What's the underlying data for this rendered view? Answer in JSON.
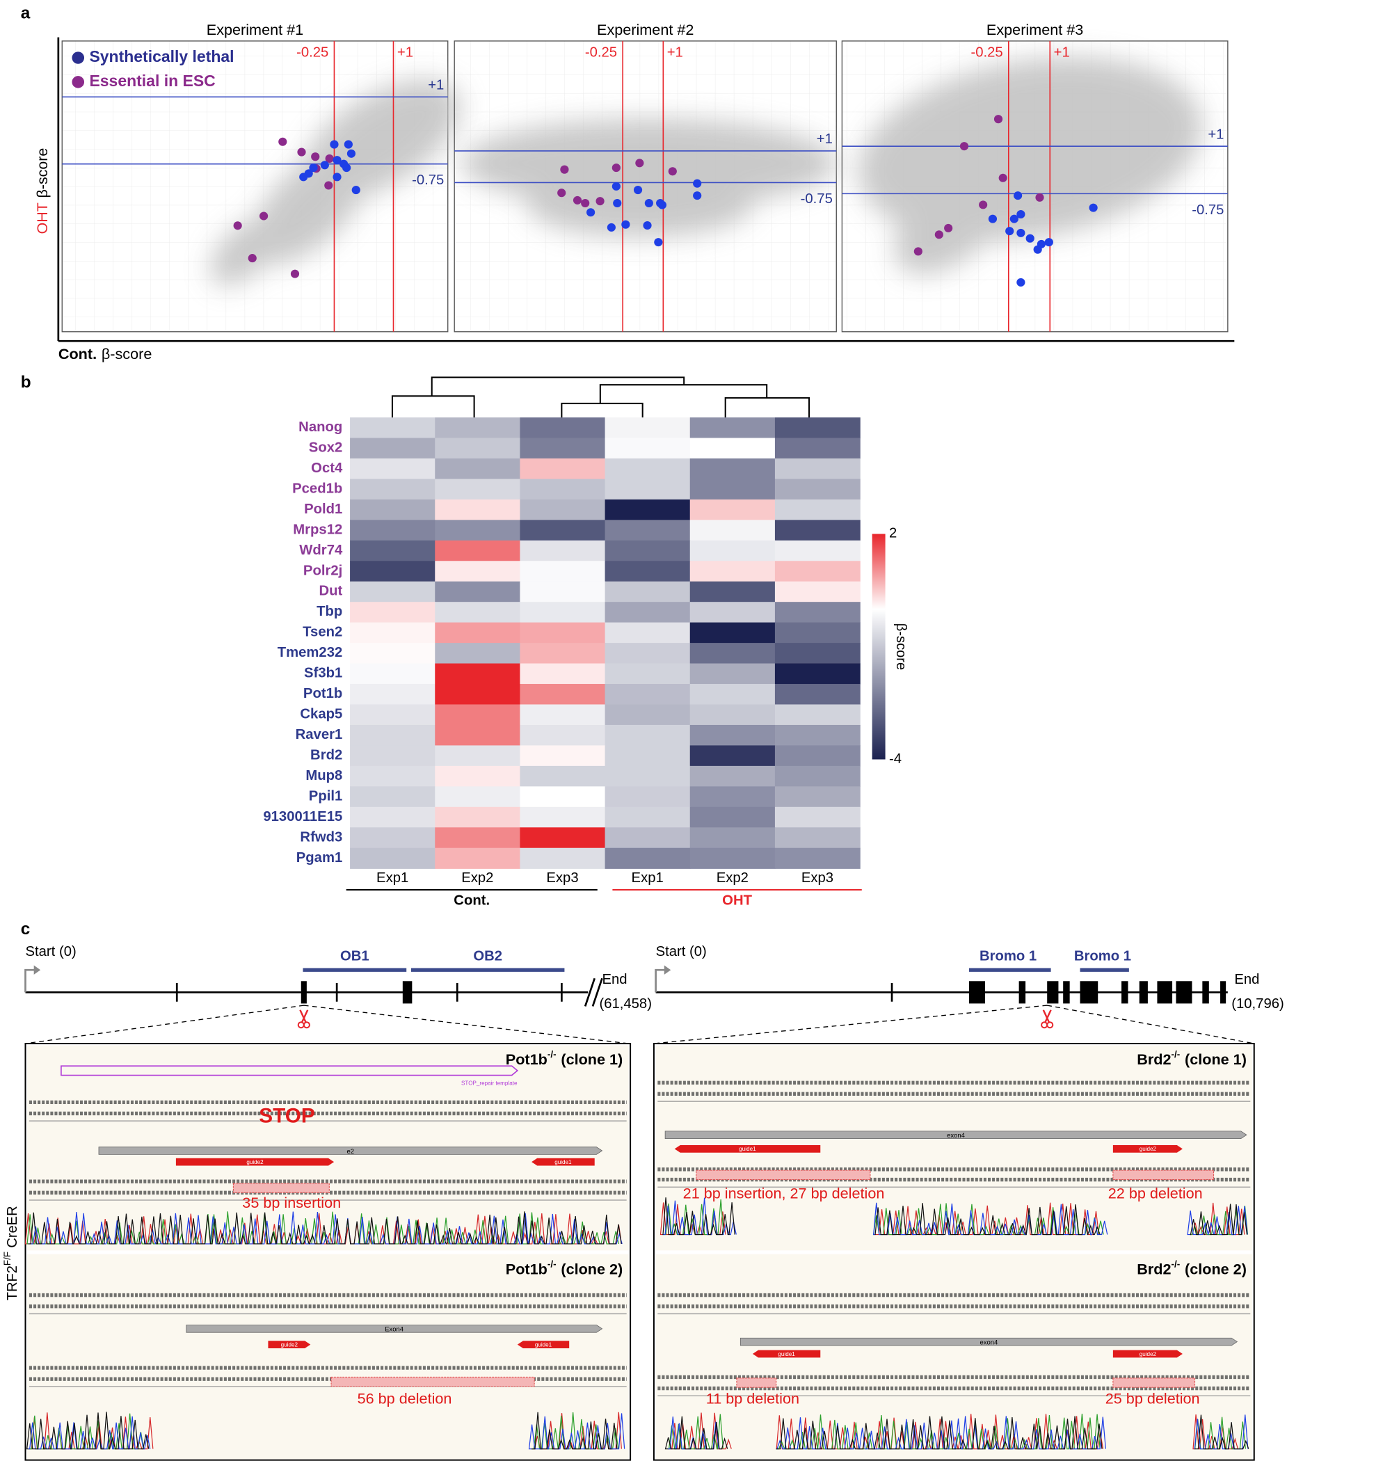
{
  "panel_a": {
    "label": "a",
    "y_label": [
      "OHT",
      "β-score"
    ],
    "x_label": [
      "Cont.",
      "β-score"
    ],
    "cloud_color": "#c4c4c4"
  },
  "chart_data": [
    {
      "type": "scatter",
      "title": "Experiment #1",
      "legend": "upper left",
      "xlim": [
        -6,
        2.15
      ],
      "ylim": [
        -5.13,
        2.46
      ],
      "vlines": [
        -0.25,
        {
          "value": 1,
          "label": "+1"
        }
      ],
      "hlines": [
        {
          "value": 1,
          "label": "+1"
        },
        -0.75
      ],
      "vline_color": "#e8262c",
      "hline_color": "#3d4fc4",
      "series": [
        {
          "name": "Synthetically lethal",
          "color": "#1f3fe6",
          "x": [
            -0.25,
            0.05,
            0.11,
            -0.19,
            -0.05,
            -0.45,
            -0.69,
            -0.79,
            -0.9,
            -0.19,
            0.01,
            0.21
          ],
          "values": [
            -0.24,
            -0.24,
            -0.48,
            -0.65,
            -0.75,
            -0.78,
            -0.85,
            -1.0,
            -1.09,
            -1.09,
            -0.85,
            -1.43
          ]
        },
        {
          "name": "Essential in ESC",
          "color": "#8b2a8b",
          "x": [
            -1.34,
            -0.94,
            -0.65,
            -0.35,
            -0.63,
            -0.37,
            -1.74,
            -2.29,
            -1.98,
            -1.08
          ],
          "values": [
            -0.17,
            -0.44,
            -0.56,
            -0.61,
            -0.87,
            -1.31,
            -2.11,
            -2.36,
            -3.21,
            -3.62
          ]
        }
      ]
    },
    {
      "type": "scatter",
      "title": "Experiment #2",
      "xlim": [
        -5.45,
        6.35
      ],
      "ylim": [
        -9,
        7.08
      ],
      "vlines": [
        -0.25,
        {
          "value": 1,
          "label": "+1"
        }
      ],
      "hlines": [
        {
          "value": 1,
          "label": "+1"
        },
        -0.75
      ],
      "vline_color": "#e8262c",
      "hline_color": "#3d4fc4",
      "series": [
        {
          "name": "Synthetically lethal",
          "color": "#1f3fe6",
          "x": [
            -0.45,
            0.22,
            -0.42,
            -1.24,
            0.56,
            0.91,
            0.97,
            2.05,
            2.05,
            -0.16,
            -0.6,
            0.51,
            0.85
          ],
          "values": [
            -0.96,
            -1.16,
            -1.89,
            -2.4,
            -1.89,
            -1.89,
            -1.99,
            -0.8,
            -1.47,
            -3.07,
            -3.23,
            -3.12,
            -4.05
          ]
        },
        {
          "name": "Essential in ESC",
          "color": "#8b2a8b",
          "x": [
            -2.05,
            -0.45,
            0.27,
            1.29,
            -2.14,
            -1.65,
            -1.41,
            -0.95
          ],
          "values": [
            -0.03,
            0.07,
            0.33,
            -0.13,
            -1.32,
            -1.73,
            -1.89,
            -1.78
          ]
        }
      ]
    },
    {
      "type": "scatter",
      "title": "Experiment #3",
      "xlim": [
        -5.28,
        6.37
      ],
      "ylim": [
        -5.84,
        4.88
      ],
      "vlines": [
        -0.25,
        {
          "value": 1,
          "label": "+1"
        }
      ],
      "hlines": [
        {
          "value": 1,
          "label": "+1"
        },
        -0.75
      ],
      "vline_color": "#e8262c",
      "hline_color": "#3d4fc4",
      "series": [
        {
          "name": "Synthetically lethal",
          "color": "#1f3fe6",
          "x": [
            0.03,
            2.31,
            -0.73,
            -0.08,
            0.12,
            -0.22,
            0.12,
            0.4,
            0.74,
            0.97,
            0.63,
            0.12
          ],
          "values": [
            -0.82,
            -1.27,
            -1.68,
            -1.68,
            -1.51,
            -2.13,
            -2.2,
            -2.4,
            -2.61,
            -2.54,
            -2.81,
            -4.02
          ]
        },
        {
          "name": "Essential in ESC",
          "color": "#8b2a8b",
          "x": [
            -0.56,
            -1.59,
            -0.42,
            -1.02,
            0.69,
            -2.07,
            -2.35,
            -2.98
          ],
          "values": [
            2.0,
            1.0,
            -0.17,
            -1.16,
            -0.89,
            -2.02,
            -2.26,
            -2.88
          ]
        }
      ]
    },
    {
      "type": "heatmap",
      "label": "b",
      "rows": [
        "Nanog",
        "Sox2",
        "Oct4",
        "Pced1b",
        "Pold1",
        "Mrps12",
        "Wdr74",
        "Polr2j",
        "Dut",
        "Tbp",
        "Tsen2",
        "Tmem232",
        "Sf3b1",
        "Pot1b",
        "Ckap5",
        "Raver1",
        "Brd2",
        "Mup8",
        "Ppil1",
        "9130011E15",
        "Rfwd3",
        "Pgam1"
      ],
      "row_colors": [
        "#8b3a96",
        "#8b3a96",
        "#8b3a96",
        "#8b3a96",
        "#8b3a96",
        "#8b3a96",
        "#8b3a96",
        "#8b3a96",
        "#8b3a96",
        "#2e3a8c",
        "#2e3a8c",
        "#2e3a8c",
        "#2e3a8c",
        "#2e3a8c",
        "#2e3a8c",
        "#2e3a8c",
        "#2e3a8c",
        "#2e3a8c",
        "#2e3a8c",
        "#2e3a8c",
        "#2e3a8c",
        "#2e3a8c"
      ],
      "columns": [
        "Exp1",
        "Exp2",
        "Exp3",
        "Exp1",
        "Exp2",
        "Exp3"
      ],
      "groups": [
        {
          "label": "Cont.",
          "color": "#000000"
        },
        {
          "label": "OHT",
          "color": "#e8262c"
        }
      ],
      "values": [
        [
          -0.8,
          -1.3,
          -2.5,
          -0.2,
          -2,
          -3
        ],
        [
          -1.5,
          -1,
          -2.3,
          -0.1,
          0,
          -2.5
        ],
        [
          -0.5,
          -1.5,
          0.6,
          -0.8,
          -2.2,
          -1
        ],
        [
          -1,
          -0.7,
          -1.1,
          -0.8,
          -2.2,
          -1.5
        ],
        [
          -1.5,
          0.3,
          -1.3,
          -4,
          0.5,
          -0.8
        ],
        [
          -2.2,
          -2,
          -3,
          -2.3,
          -0.2,
          -3.2
        ],
        [
          -2.8,
          1.3,
          -0.5,
          -2.6,
          -0.4,
          -0.3
        ],
        [
          -3.3,
          0.2,
          -0.1,
          -3,
          0.3,
          0.6
        ],
        [
          -0.8,
          -2,
          -0.1,
          -1,
          -3,
          0.2
        ],
        [
          0.3,
          -0.6,
          -0.4,
          -1.6,
          -0.9,
          -2.2
        ],
        [
          0.1,
          0.9,
          0.8,
          -0.5,
          -4,
          -2.6
        ],
        [
          0.05,
          -1.3,
          0.7,
          -0.9,
          -2.6,
          -3
        ],
        [
          -0.1,
          2,
          0.2,
          -0.8,
          -1.5,
          -4
        ],
        [
          -0.3,
          2,
          1.1,
          -1.2,
          -0.8,
          -2.7
        ],
        [
          -0.5,
          1.2,
          -0.3,
          -1.3,
          -1,
          -0.8
        ],
        [
          -0.7,
          1.2,
          -0.5,
          -0.8,
          -2,
          -1.8
        ],
        [
          -0.7,
          -0.5,
          0.1,
          -0.8,
          -3.6,
          -2.1
        ],
        [
          -0.6,
          0.2,
          -0.8,
          -0.8,
          -1.5,
          -1.8
        ],
        [
          -0.8,
          -0.3,
          0,
          -0.9,
          -2,
          -1.5
        ],
        [
          -0.5,
          0.4,
          -0.3,
          -0.8,
          -2.2,
          -0.7
        ],
        [
          -0.9,
          1.1,
          2,
          -1.2,
          -1.8,
          -1.3
        ],
        [
          -1.1,
          0.7,
          -0.6,
          -2.2,
          -2.1,
          -2
        ]
      ],
      "zlim": [
        -4,
        2
      ],
      "colors": [
        "#1b2150",
        "#ffffff",
        "#e8262c"
      ],
      "colorbar": {
        "label": "β-score",
        "ticks": [
          2,
          -4
        ]
      }
    }
  ],
  "panel_c": {
    "label": "c",
    "side_label": [
      "TRF2",
      "F/F",
      "CreER"
    ],
    "gene_maps": [
      {
        "start": "Start (0)",
        "end": "End",
        "end_coord": "(61,458)",
        "domains": [
          "OB1",
          "OB2"
        ]
      },
      {
        "start": "Start (0)",
        "end": "End",
        "end_coord": "(10,796)",
        "domains": [
          "Bromo 1",
          "Bromo 1"
        ]
      }
    ],
    "clones": [
      {
        "gene": "Pot1b",
        "genotype": "-/-",
        "clone": "(clone 1)",
        "exon": "e2",
        "guides": [
          "guide2",
          "guide1"
        ],
        "template": "STOP_repair template",
        "stop": "STOP",
        "edits": [
          "35 bp insertion"
        ]
      },
      {
        "gene": "Pot1b",
        "genotype": "-/-",
        "clone": "(clone 2)",
        "exon": "Exon4",
        "guides": [
          "guide2",
          "guide1"
        ],
        "edits": [
          "56 bp deletion"
        ]
      },
      {
        "gene": "Brd2",
        "genotype": "-/-",
        "clone": "(clone 1)",
        "exon": "exon4",
        "guides": [
          "guide1",
          "guide2"
        ],
        "edits": [
          "21 bp insertion, 27 bp deletion",
          "22 bp deletion"
        ]
      },
      {
        "gene": "Brd2",
        "genotype": "-/-",
        "clone": "(clone 2)",
        "exon": "exon4",
        "guides": [
          "guide1",
          "guide2"
        ],
        "edits": [
          "11 bp deletion",
          "25 bp deletion"
        ]
      }
    ]
  }
}
